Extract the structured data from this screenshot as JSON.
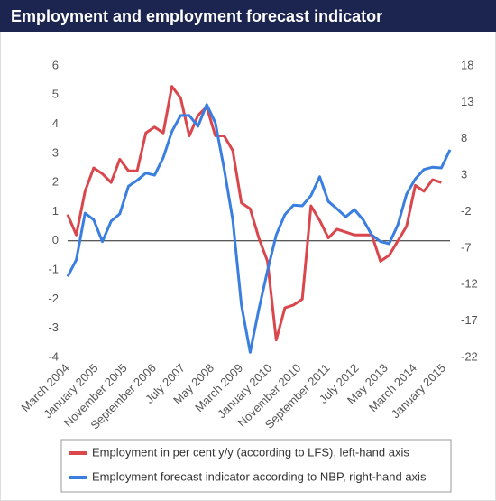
{
  "chart_data": {
    "type": "line",
    "title": "Employment and employment forecast indicator",
    "x": [
      "March 2004",
      "June 2004",
      "September 2004",
      "December 2004",
      "March 2005",
      "June 2005",
      "September 2005",
      "December 2005",
      "March 2006",
      "June 2006",
      "September 2006",
      "December 2006",
      "March 2007",
      "June 2007",
      "September 2007",
      "December 2007",
      "March 2008",
      "June 2008",
      "September 2008",
      "December 2008",
      "March 2009",
      "June 2009",
      "September 2009",
      "December 2009",
      "March 2010",
      "June 2010",
      "September 2010",
      "December 2010",
      "March 2011",
      "June 2011",
      "September 2011",
      "December 2011",
      "March 2012",
      "June 2012",
      "September 2012",
      "December 2012",
      "March 2013",
      "June 2013",
      "September 2013",
      "December 2013",
      "March 2014",
      "June 2014",
      "September 2014",
      "December 2014",
      "March 2015"
    ],
    "series": [
      {
        "name": "Employment in per cent y/y (according to LFS), left-hand axis",
        "color": "#d9474d",
        "values": [
          0.9,
          0.2,
          1.7,
          2.5,
          2.3,
          2.0,
          2.8,
          2.4,
          2.4,
          3.7,
          3.9,
          3.7,
          5.3,
          4.9,
          3.6,
          4.3,
          4.6,
          3.6,
          3.6,
          3.1,
          1.3,
          1.1,
          0.1,
          -0.7,
          -3.4,
          -2.3,
          -2.2,
          -2.0,
          1.2,
          0.7,
          0.1,
          0.4,
          0.3,
          0.2,
          0.2,
          0.2,
          -0.7,
          -0.5,
          0.0,
          0.5,
          1.9,
          1.7,
          2.1,
          2.0,
          null
        ]
      },
      {
        "name": "Employment forecast indicator according to NBP, right-hand axis",
        "color": "#3a7fe0",
        "axis": "y2",
        "values": [
          -10.9,
          -8.6,
          -2.2,
          -3.1,
          -6.1,
          -3.3,
          -2.3,
          1.5,
          2.3,
          3.3,
          3.0,
          5.4,
          9.0,
          11.2,
          11.2,
          9.7,
          12.7,
          10.2,
          3.9,
          -3.1,
          -14.8,
          -21.3,
          -15.4,
          -10.1,
          -5.2,
          -2.4,
          -1.1,
          -1.2,
          0.2,
          2.8,
          -0.6,
          -1.6,
          -2.7,
          -1.7,
          -3.1,
          -5.2,
          -6.1,
          -6.4,
          -3.8,
          0.4,
          2.5,
          3.8,
          4.1,
          4.0,
          6.5
        ]
      }
    ],
    "xlim": [
      "March 2004",
      "March 2015"
    ],
    "xticks": [
      "March 2004",
      "January 2005",
      "November 2005",
      "September 2006",
      "July 2007",
      "May 2008",
      "March 2009",
      "January 2010",
      "November 2010",
      "September 2011",
      "July 2012",
      "May 2013",
      "March 2014",
      "January 2015"
    ],
    "ylim": [
      -4,
      6
    ],
    "yticks": [
      -4,
      -3,
      -2,
      -1,
      0,
      1,
      2,
      3,
      4,
      5,
      6
    ],
    "y2lim": [
      -22,
      18
    ],
    "y2ticks": [
      -22,
      -17,
      -12,
      -7,
      -2,
      3,
      8,
      13,
      18
    ]
  }
}
